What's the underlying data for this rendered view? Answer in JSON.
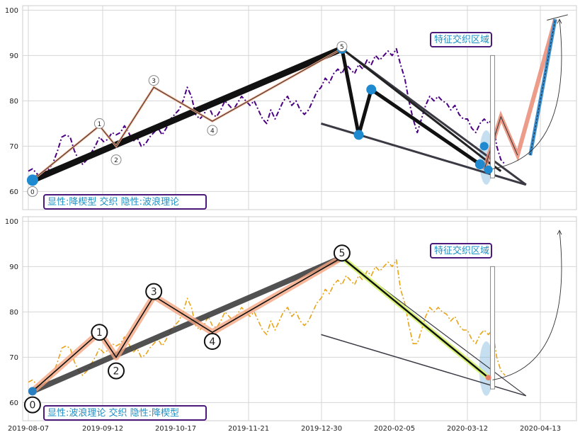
{
  "chart_data": [
    {
      "type": "line",
      "panel": "top",
      "ylim": [
        56,
        101
      ],
      "yticks": [
        60,
        70,
        80,
        90,
        100
      ],
      "grid": true,
      "x_tick_labels": [
        "2019-08-07",
        "2019-09-12",
        "2019-10-17",
        "2019-11-21",
        "2019-12-30",
        "2020-02-05",
        "2020-03-12",
        "2020-04-13"
      ],
      "annotation_bottom": "显性:降楔型 交织 隐性:波浪理论",
      "annotation_top": "特征交织区域",
      "price_series": {
        "color": "#4b0082",
        "style": "dashdot",
        "values": [
          [
            0,
            64.5
          ],
          [
            1,
            65
          ],
          [
            2,
            64
          ],
          [
            3,
            63
          ],
          [
            4,
            64.5
          ],
          [
            5,
            65
          ],
          [
            6,
            66.5
          ],
          [
            7,
            69
          ],
          [
            8,
            72
          ],
          [
            9,
            72.5
          ],
          [
            10,
            72
          ],
          [
            11,
            69
          ],
          [
            12,
            67
          ],
          [
            13,
            66
          ],
          [
            14,
            67
          ],
          [
            15,
            68.5
          ],
          [
            16,
            70
          ],
          [
            17,
            72
          ],
          [
            18,
            71
          ],
          [
            19,
            71.5
          ],
          [
            20,
            73
          ],
          [
            21,
            72.5
          ],
          [
            22,
            73
          ],
          [
            23,
            74.5
          ],
          [
            24,
            73
          ],
          [
            25,
            71
          ],
          [
            26,
            72
          ],
          [
            27,
            70
          ],
          [
            28,
            70.5
          ],
          [
            29,
            72
          ],
          [
            30,
            73
          ],
          [
            31,
            74
          ],
          [
            32,
            72.5
          ],
          [
            33,
            74
          ],
          [
            34,
            76
          ],
          [
            35,
            77
          ],
          [
            36,
            78
          ],
          [
            37,
            80
          ],
          [
            38,
            83
          ],
          [
            39,
            81
          ],
          [
            40,
            77
          ],
          [
            41,
            76
          ],
          [
            42,
            77
          ],
          [
            43,
            79
          ],
          [
            44,
            77
          ],
          [
            45,
            76.5
          ],
          [
            46,
            78
          ],
          [
            47,
            80
          ],
          [
            48,
            79
          ],
          [
            49,
            78
          ],
          [
            50,
            79.5
          ],
          [
            51,
            81
          ],
          [
            52,
            80
          ],
          [
            53,
            79
          ],
          [
            54,
            80
          ],
          [
            55,
            78
          ],
          [
            56,
            76
          ],
          [
            57,
            75
          ],
          [
            58,
            78
          ],
          [
            59,
            76
          ],
          [
            60,
            78
          ],
          [
            61,
            80
          ],
          [
            62,
            81
          ],
          [
            63,
            79
          ],
          [
            64,
            80
          ],
          [
            65,
            78
          ],
          [
            66,
            77
          ],
          [
            67,
            78
          ],
          [
            68,
            80
          ],
          [
            69,
            82
          ],
          [
            70,
            83
          ],
          [
            71,
            85
          ],
          [
            72,
            84
          ],
          [
            73,
            86
          ],
          [
            74,
            87
          ],
          [
            75,
            86
          ],
          [
            76,
            88
          ],
          [
            77,
            87
          ],
          [
            78,
            86
          ],
          [
            79,
            88
          ],
          [
            80,
            87
          ],
          [
            81,
            89
          ],
          [
            82,
            88
          ],
          [
            83,
            90
          ],
          [
            84,
            89
          ],
          [
            85,
            90
          ],
          [
            86,
            91
          ],
          [
            87,
            90
          ],
          [
            88,
            91.5
          ],
          [
            89,
            88
          ],
          [
            90,
            85
          ],
          [
            91,
            80
          ],
          [
            92,
            76
          ],
          [
            93,
            73
          ],
          [
            94,
            76
          ],
          [
            95,
            79
          ],
          [
            96,
            81
          ],
          [
            97,
            80
          ],
          [
            98,
            81
          ],
          [
            99,
            80
          ],
          [
            100,
            79.5
          ],
          [
            101,
            78
          ],
          [
            102,
            79
          ],
          [
            103,
            77
          ],
          [
            104,
            76
          ],
          [
            105,
            76
          ],
          [
            106,
            74
          ],
          [
            107,
            73
          ],
          [
            108,
            75
          ],
          [
            109,
            76
          ],
          [
            110,
            75
          ],
          [
            111,
            76
          ],
          [
            112,
            70
          ],
          [
            113,
            67
          ],
          [
            114,
            66
          ]
        ]
      },
      "waves": {
        "points": [
          [
            1,
            62.5
          ],
          [
            17,
            74.5
          ],
          [
            21,
            70
          ],
          [
            30,
            83
          ],
          [
            44,
            75.5
          ],
          [
            75,
            91.5
          ]
        ],
        "labels": [
          "0",
          "1",
          "2",
          "3",
          "4",
          "5"
        ],
        "label_values": [
          60,
          75,
          67,
          84.5,
          73.5,
          92
        ]
      },
      "main_trend": [
        [
          1,
          62.5
        ],
        [
          75,
          91.5
        ]
      ],
      "wedge": {
        "upper": [
          [
            75,
            91.5
          ],
          [
            110,
            66.5
          ],
          [
            113,
            64.5
          ]
        ],
        "extended_upper": [
          [
            75,
            91.5
          ],
          [
            119,
            61.5
          ]
        ],
        "lower": [
          [
            70,
            75
          ],
          [
            119,
            61.5
          ]
        ],
        "key_points": [
          [
            75,
            91.5
          ],
          [
            79,
            72.5
          ],
          [
            82,
            82.5
          ],
          [
            108,
            66
          ],
          [
            109,
            70
          ],
          [
            110,
            64.8
          ]
        ]
      },
      "forecast": {
        "zigzag": [
          [
            109,
            64.8
          ],
          [
            113,
            76.5
          ],
          [
            117,
            68
          ],
          [
            126,
            98
          ]
        ],
        "dashed": [
          [
            120,
            68
          ],
          [
            126,
            98
          ]
        ],
        "box_marker": {
          "x_range": [
            110.5,
            111.5
          ],
          "y_range": [
            63,
            90
          ]
        },
        "arc_end": [
          127,
          98
        ]
      },
      "highlight_ellipse": {
        "cx": 109.5,
        "cy": 67.5,
        "rx": 1.7,
        "ry": 6
      }
    },
    {
      "type": "line",
      "panel": "bottom",
      "ylim": [
        56,
        101
      ],
      "yticks": [
        60,
        70,
        80,
        90,
        100
      ],
      "grid": true,
      "x_tick_labels": [
        "2019-08-07",
        "2019-09-12",
        "2019-10-17",
        "2019-11-21",
        "2019-12-30",
        "2020-02-05",
        "2020-03-12",
        "2020-04-13"
      ],
      "annotation_bottom": "显性:波浪理论 交织 隐性:降楔型",
      "annotation_top": "特征交织区域",
      "price_series": {
        "color": "#e8a317",
        "style": "dashdot"
      },
      "waves": {
        "points": [
          [
            1,
            62.5
          ],
          [
            17,
            75.5
          ],
          [
            21,
            70
          ],
          [
            30,
            83.5
          ],
          [
            44,
            75.5
          ],
          [
            75,
            92
          ]
        ],
        "labels": [
          "0",
          "1",
          "2",
          "3",
          "4",
          "5"
        ],
        "label_values": [
          59.5,
          75.5,
          67,
          84.5,
          73.5,
          93
        ]
      },
      "main_trend": [
        [
          1,
          62.5
        ],
        [
          75,
          92
        ]
      ],
      "wedge": {
        "upper": [
          [
            75,
            92
          ],
          [
            110,
            65.5
          ]
        ],
        "extended_upper": [
          [
            75,
            92
          ],
          [
            119,
            61.5
          ]
        ],
        "lower": [
          [
            70,
            75
          ],
          [
            119,
            61.5
          ]
        ]
      },
      "forecast": {
        "box_marker": {
          "x_range": [
            110.5,
            111.5
          ],
          "y_range": [
            63,
            90
          ]
        },
        "arc_end": [
          127,
          98
        ]
      },
      "highlight_ellipse": {
        "cx": 109.5,
        "cy": 67.5,
        "rx": 1.7,
        "ry": 6
      }
    }
  ]
}
